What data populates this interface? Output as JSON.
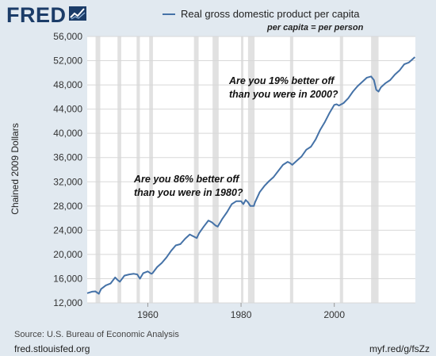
{
  "header": {
    "logo_text": "FRED",
    "logo_icon": "line-chart-icon"
  },
  "chart_data": {
    "type": "line",
    "title": "",
    "legend": {
      "placement": "top",
      "entries": [
        "Real gross domestic product per capita"
      ]
    },
    "subtitle": "per capita = per person",
    "ylabel": "Chained 2009 Dollars",
    "xlabel": "",
    "xlim": [
      1947,
      2017.4
    ],
    "ylim": [
      12000,
      56000
    ],
    "xticks": [
      1960,
      1980,
      2000
    ],
    "yticks": [
      12000,
      16000,
      20000,
      24000,
      28000,
      32000,
      36000,
      40000,
      44000,
      48000,
      52000,
      56000
    ],
    "ytick_labels": [
      "12,000",
      "16,000",
      "20,000",
      "24,000",
      "28,000",
      "32,000",
      "36,000",
      "40,000",
      "44,000",
      "48,000",
      "52,000",
      "56,000"
    ],
    "grid": true,
    "series": [
      {
        "name": "Real gross domestic product per capita",
        "color": "#4572a7",
        "x": [
          1947,
          1948,
          1948.75,
          1949.5,
          1950,
          1951,
          1952,
          1953,
          1953.5,
          1954,
          1955,
          1956,
          1957,
          1957.75,
          1958.3,
          1959,
          1960,
          1960.75,
          1961,
          1962,
          1963,
          1964,
          1965,
          1966,
          1967,
          1968,
          1969,
          1969.75,
          1970.5,
          1971,
          1972,
          1973,
          1973.75,
          1974.5,
          1975,
          1976,
          1977,
          1978,
          1979,
          1980,
          1980.5,
          1981,
          1981.5,
          1982,
          1982.75,
          1983,
          1984,
          1985,
          1986,
          1987,
          1988,
          1989,
          1990,
          1990.5,
          1991,
          1992,
          1993,
          1994,
          1995,
          1996,
          1997,
          1998,
          1999,
          2000,
          2000.5,
          2001,
          2002,
          2003,
          2004,
          2005,
          2006,
          2007,
          2007.9,
          2008.5,
          2009,
          2009.5,
          2010,
          2011,
          2012,
          2013,
          2014,
          2015,
          2016,
          2017.3
        ],
        "values": [
          13600,
          13850,
          13900,
          13500,
          14300,
          14900,
          15200,
          16200,
          15800,
          15500,
          16500,
          16700,
          16800,
          16700,
          16000,
          16900,
          17200,
          16800,
          16900,
          17900,
          18600,
          19500,
          20600,
          21500,
          21700,
          22600,
          23300,
          23000,
          22700,
          23500,
          24600,
          25600,
          25300,
          24800,
          24600,
          25900,
          27000,
          28300,
          28800,
          28800,
          28300,
          29000,
          28600,
          28000,
          28000,
          28600,
          30300,
          31300,
          32100,
          32800,
          33800,
          34800,
          35300,
          35100,
          34800,
          35500,
          36200,
          37300,
          37800,
          39000,
          40600,
          41900,
          43400,
          44700,
          44800,
          44600,
          45000,
          45800,
          46900,
          47800,
          48500,
          49200,
          49400,
          48800,
          47200,
          46900,
          47600,
          48300,
          48800,
          49700,
          50400,
          51400,
          51700,
          52600
        ]
      }
    ],
    "recessions": [
      [
        1948.8,
        1949.8
      ],
      [
        1953.5,
        1954.3
      ],
      [
        1957.6,
        1958.3
      ],
      [
        1960.3,
        1961.1
      ],
      [
        1969.9,
        1970.9
      ],
      [
        1973.9,
        1975.2
      ],
      [
        1980.0,
        1980.5
      ],
      [
        1981.5,
        1982.9
      ],
      [
        1990.5,
        1991.2
      ],
      [
        2001.2,
        2001.9
      ],
      [
        2007.9,
        2009.5
      ]
    ],
    "annotations": [
      {
        "text": [
          "Are you 86% better off",
          "than you were in 1980?"
        ]
      },
      {
        "text": [
          "Are you 19% better off",
          "than you were in 2000?"
        ]
      }
    ]
  },
  "footer": {
    "source": "Source: U.S. Bureau of Economic Analysis",
    "left_url": "fred.stlouisfed.org",
    "right_url": "myf.red/g/fsZz"
  }
}
